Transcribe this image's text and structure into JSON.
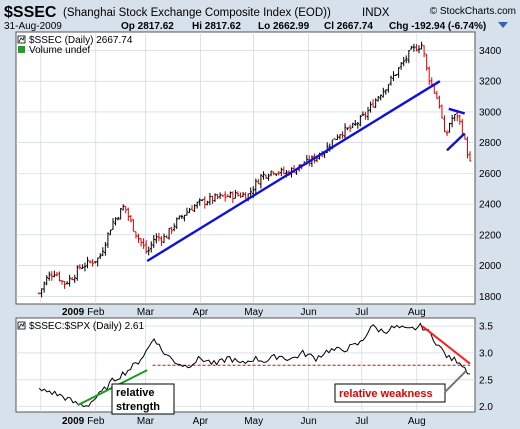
{
  "header": {
    "symbol": "$SSEC",
    "name": "(Shanghai Stock Exchange Composite Index (EOD))",
    "exchange": "INDX",
    "watermark": "© StockCharts.com",
    "date": "31-Aug-2009",
    "op": "Op 2817.62",
    "hi": "Hi 2817.62",
    "lo": "Lo 2662.99",
    "cl": "Cl 2667.74",
    "chg": "Chg -192.94 (-6.74%)"
  },
  "chart_data": [
    {
      "type": "ohlc",
      "legend": [
        "$SSEC (Daily) 2667.74",
        "Volume undef"
      ],
      "ylim": [
        1750,
        3520
      ],
      "yticks": [
        "1800",
        "2000",
        "2200",
        "2400",
        "2600",
        "2800",
        "3000",
        "3200",
        "3400"
      ],
      "xticks": [
        "2009",
        "Feb",
        "Mar",
        "Apr",
        "May",
        "Jun",
        "Jul",
        "Aug"
      ],
      "close_path": [
        [
          "2008-12-31",
          1820
        ],
        [
          "2009-01-05",
          1930
        ],
        [
          "2009-01-09",
          1960
        ],
        [
          "2009-01-14",
          1880
        ],
        [
          "2009-01-20",
          1940
        ],
        [
          "2009-01-23",
          1990
        ],
        [
          "2009-02-03",
          2050
        ],
        [
          "2009-02-10",
          2270
        ],
        [
          "2009-02-17",
          2390
        ],
        [
          "2009-02-20",
          2300
        ],
        [
          "2009-02-24",
          2200
        ],
        [
          "2009-03-02",
          2080
        ],
        [
          "2009-03-06",
          2180
        ],
        [
          "2009-03-12",
          2180
        ],
        [
          "2009-03-18",
          2280
        ],
        [
          "2009-03-26",
          2370
        ],
        [
          "2009-04-01",
          2410
        ],
        [
          "2009-04-10",
          2440
        ],
        [
          "2009-04-20",
          2460
        ],
        [
          "2009-04-28",
          2460
        ],
        [
          "2009-05-05",
          2580
        ],
        [
          "2009-05-12",
          2620
        ],
        [
          "2009-05-19",
          2600
        ],
        [
          "2009-05-26",
          2640
        ],
        [
          "2009-06-02",
          2680
        ],
        [
          "2009-06-10",
          2750
        ],
        [
          "2009-06-18",
          2860
        ],
        [
          "2009-06-26",
          2900
        ],
        [
          "2009-07-03",
          2980
        ],
        [
          "2009-07-10",
          3100
        ],
        [
          "2009-07-17",
          3200
        ],
        [
          "2009-07-23",
          3300
        ],
        [
          "2009-07-29",
          3400
        ],
        [
          "2009-08-04",
          3440
        ],
        [
          "2009-08-07",
          3250
        ],
        [
          "2009-08-12",
          3100
        ],
        [
          "2009-08-14",
          3040
        ],
        [
          "2009-08-17",
          2820
        ],
        [
          "2009-08-20",
          2950
        ],
        [
          "2009-08-24",
          2980
        ],
        [
          "2009-08-27",
          2860
        ],
        [
          "2009-08-31",
          2667.74
        ]
      ],
      "trendlines": [
        {
          "name": "support",
          "color": "#1010dd",
          "from": [
            "2009-03-02",
            2030
          ],
          "to": [
            "2009-08-14",
            3200
          ]
        },
        {
          "name": "channel-top",
          "color": "#1010dd",
          "from": [
            "2009-08-19",
            3020
          ],
          "to": [
            "2009-08-28",
            2990
          ]
        },
        {
          "name": "channel-bottom",
          "color": "#1010dd",
          "from": [
            "2009-08-18",
            2750
          ],
          "to": [
            "2009-08-28",
            2860
          ]
        }
      ]
    },
    {
      "type": "line",
      "legend": [
        "$SSEC:$SPX (Daily) 2.61"
      ],
      "ylim": [
        1.9,
        3.65
      ],
      "yticks": [
        "2.0",
        "2.5",
        "3.0",
        "3.5"
      ],
      "xticks": [
        "2009",
        "Feb",
        "Mar",
        "Apr",
        "May",
        "Jun",
        "Jul",
        "Aug"
      ],
      "series": [
        {
          "points": [
            [
              "2008-12-31",
              2.3
            ],
            [
              "2009-01-06",
              2.28
            ],
            [
              "2009-01-14",
              2.18
            ],
            [
              "2009-01-21",
              2.05
            ],
            [
              "2009-01-27",
              2.02
            ],
            [
              "2009-02-04",
              2.25
            ],
            [
              "2009-02-11",
              2.5
            ],
            [
              "2009-02-18",
              2.65
            ],
            [
              "2009-02-24",
              2.8
            ],
            [
              "2009-03-02",
              3.05
            ],
            [
              "2009-03-06",
              3.3
            ],
            [
              "2009-03-10",
              3.05
            ],
            [
              "2009-03-17",
              2.85
            ],
            [
              "2009-03-24",
              2.75
            ],
            [
              "2009-04-01",
              2.9
            ],
            [
              "2009-04-10",
              2.78
            ],
            [
              "2009-04-17",
              2.92
            ],
            [
              "2009-04-24",
              2.78
            ],
            [
              "2009-05-01",
              2.9
            ],
            [
              "2009-05-08",
              2.85
            ],
            [
              "2009-05-15",
              2.95
            ],
            [
              "2009-05-22",
              2.88
            ],
            [
              "2009-05-29",
              3.0
            ],
            [
              "2009-06-05",
              2.9
            ],
            [
              "2009-06-12",
              3.05
            ],
            [
              "2009-06-19",
              3.05
            ],
            [
              "2009-06-26",
              3.12
            ],
            [
              "2009-07-01",
              3.2
            ],
            [
              "2009-07-06",
              3.5
            ],
            [
              "2009-07-13",
              3.4
            ],
            [
              "2009-07-20",
              3.48
            ],
            [
              "2009-07-27",
              3.42
            ],
            [
              "2009-08-04",
              3.5
            ],
            [
              "2009-08-10",
              3.3
            ],
            [
              "2009-08-14",
              3.1
            ],
            [
              "2009-08-19",
              2.9
            ],
            [
              "2009-08-25",
              2.85
            ],
            [
              "2009-08-31",
              2.61
            ]
          ]
        }
      ],
      "reference_line": {
        "value": 2.77,
        "from": "2009-03-05",
        "to": "2009-08-31",
        "color": "#e00000",
        "style": "dashed"
      },
      "trendlines": [
        {
          "name": "relative-strength",
          "color": "#1a9a1a",
          "from": [
            "2009-01-22",
            2.03
          ],
          "to": [
            "2009-03-02",
            2.68
          ]
        },
        {
          "name": "relative-weakness",
          "color": "#ff2020",
          "from": [
            "2009-08-04",
            3.5
          ],
          "to": [
            "2009-08-31",
            2.8
          ]
        }
      ],
      "annotations": [
        {
          "lines": [
            "relative",
            "strength"
          ],
          "color": "#000000"
        },
        {
          "lines": [
            "relative weakness"
          ],
          "color": "#e00000"
        }
      ]
    }
  ],
  "colors": {
    "up": "#000000",
    "down": "#dd0000",
    "panel_bg": "#ffffff",
    "frame_bg": "#d6e1ec",
    "grid": "#c8d0da"
  }
}
